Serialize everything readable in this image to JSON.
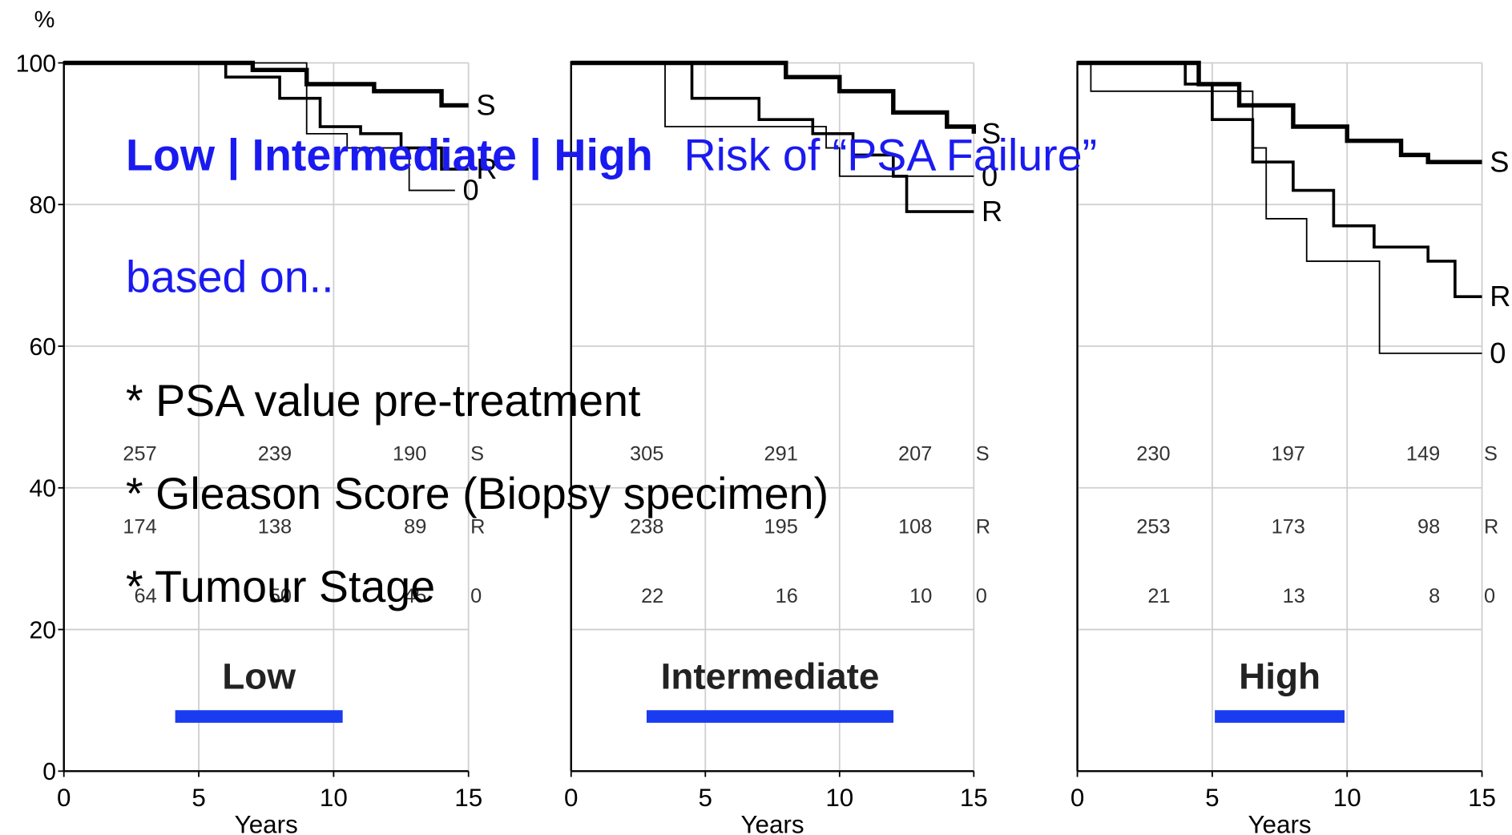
{
  "chart_data": [
    {
      "type": "line",
      "title": "Low",
      "x_label": "Years",
      "y_label": "%",
      "drawstyle": "steps-post",
      "xlim": [
        0,
        15
      ],
      "xticks": [
        0,
        5,
        10,
        15
      ],
      "ylim": [
        0,
        100
      ],
      "yticks": [
        0,
        20,
        40,
        60,
        80,
        100
      ],
      "show_ytick_labels": true,
      "grid": true,
      "series": [
        {
          "name": "S",
          "color": "#000000",
          "x": [
            0,
            5,
            7,
            9,
            11.5,
            14,
            15
          ],
          "values": [
            100,
            100,
            99,
            97,
            96,
            94,
            94
          ]
        },
        {
          "name": "R",
          "color": "#000000",
          "x": [
            0,
            4,
            6,
            8,
            9.5,
            11,
            12.5,
            14,
            15
          ],
          "values": [
            100,
            100,
            98,
            95,
            91,
            90,
            88,
            85,
            85
          ]
        },
        {
          "name": "0",
          "color": "#000000",
          "x": [
            0,
            8.5,
            9,
            10.5,
            12.8,
            14.5
          ],
          "values": [
            100,
            100,
            90,
            88,
            82,
            82
          ]
        }
      ],
      "risk_table": [
        {
          "name": "S",
          "values": [
            257,
            239,
            190
          ]
        },
        {
          "name": "R",
          "values": [
            174,
            138,
            89
          ]
        },
        {
          "name": "0",
          "values": [
            64,
            50,
            45
          ]
        }
      ]
    },
    {
      "type": "line",
      "title": "Intermediate",
      "x_label": "Years",
      "drawstyle": "steps-post",
      "xlim": [
        0,
        15
      ],
      "xticks": [
        0,
        5,
        10,
        15
      ],
      "ylim": [
        0,
        100
      ],
      "yticks": [
        0,
        20,
        40,
        60,
        80,
        100
      ],
      "show_ytick_labels": false,
      "grid": true,
      "series": [
        {
          "name": "S",
          "color": "#000000",
          "x": [
            0,
            6,
            8,
            10,
            12,
            14,
            15
          ],
          "values": [
            100,
            100,
            98,
            96,
            93,
            91,
            90
          ]
        },
        {
          "name": "R",
          "color": "#000000",
          "x": [
            0,
            3,
            4.5,
            7,
            9,
            10.5,
            12,
            12.5,
            15
          ],
          "values": [
            100,
            100,
            95,
            92,
            90,
            87,
            84,
            79,
            79
          ]
        },
        {
          "name": "0",
          "color": "#000000",
          "x": [
            0,
            3.5,
            9.5,
            10,
            15
          ],
          "values": [
            100,
            91,
            88,
            84,
            84
          ]
        }
      ],
      "risk_table": [
        {
          "name": "S",
          "values": [
            305,
            291,
            207
          ]
        },
        {
          "name": "R",
          "values": [
            238,
            195,
            108
          ]
        },
        {
          "name": "0",
          "values": [
            22,
            16,
            10
          ]
        }
      ]
    },
    {
      "type": "line",
      "title": "High",
      "x_label": "Years",
      "drawstyle": "steps-post",
      "xlim": [
        0,
        15
      ],
      "xticks": [
        0,
        5,
        10,
        15
      ],
      "ylim": [
        0,
        100
      ],
      "yticks": [
        0,
        20,
        40,
        60,
        80,
        100
      ],
      "show_ytick_labels": false,
      "grid": true,
      "series": [
        {
          "name": "S",
          "color": "#000000",
          "x": [
            0,
            3,
            4.5,
            6,
            8,
            10,
            12,
            13,
            15
          ],
          "values": [
            100,
            100,
            97,
            94,
            91,
            89,
            87,
            86,
            86
          ]
        },
        {
          "name": "R",
          "color": "#000000",
          "x": [
            0,
            2,
            4,
            5,
            6.5,
            8,
            9.5,
            11,
            13,
            14,
            15
          ],
          "values": [
            100,
            100,
            97,
            92,
            86,
            82,
            77,
            74,
            72,
            67,
            67
          ]
        },
        {
          "name": "0",
          "color": "#000000",
          "x": [
            0,
            0.5,
            6.5,
            7,
            8.5,
            11.2,
            15
          ],
          "values": [
            100,
            96,
            88,
            78,
            72,
            59,
            59
          ]
        }
      ],
      "risk_table": [
        {
          "name": "S",
          "values": [
            230,
            197,
            149
          ]
        },
        {
          "name": "R",
          "values": [
            253,
            173,
            98
          ]
        },
        {
          "name": "0",
          "values": [
            21,
            13,
            8
          ]
        }
      ]
    }
  ],
  "overlay": {
    "heading_bold": "Low | Intermediate | High",
    "heading_rest": "Risk of “PSA Failure”",
    "subheading": "based on..",
    "bullets": [
      "* PSA value pre-treatment",
      "* Gleason Score (Biopsy specimen)",
      "* Tumour Stage"
    ]
  }
}
